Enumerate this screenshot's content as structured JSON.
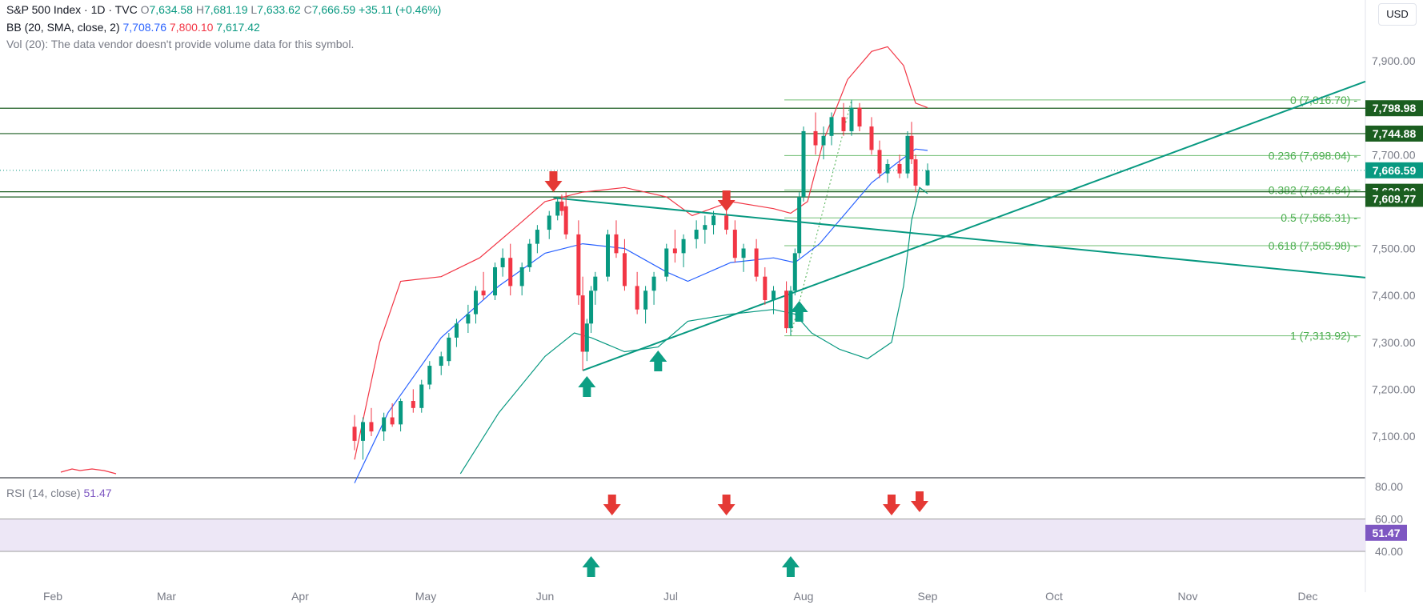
{
  "header": {
    "symbol": "S&P 500 Index · 1D · TVC",
    "o_label": "O",
    "o": "7,634.58",
    "h_label": "H",
    "h": "7,681.19",
    "l_label": "L",
    "l": "7,633.62",
    "c_label": "C",
    "c": "7,666.59",
    "change": "+35.11 (+0.46%)",
    "bb_label": "BB (20, SMA, close, 2)",
    "bb_basis": "7,708.76",
    "bb_upper": "7,800.10",
    "bb_lower": "7,617.42",
    "vol_label": "Vol (20):",
    "vol_note": "The data vendor doesn't provide volume data for this symbol.",
    "rsi_label": "RSI (14, close)",
    "rsi_value": "51.47",
    "currency": "USD"
  },
  "chart_data": {
    "type": "candlestick",
    "title": "S&P 500 Index · 1D · TVC",
    "y_axis": {
      "ticks": [
        7100,
        7200,
        7300,
        7400,
        7500,
        7600,
        7700,
        7900
      ],
      "tick_labels": [
        "7,100.00",
        "7,200.00",
        "7,300.00",
        "7,400.00",
        "7,500.00",
        "7,600.00",
        "7,700.00",
        "7,900.00"
      ],
      "range": [
        7020,
        7985
      ]
    },
    "x_axis": {
      "tick_labels": [
        "Feb",
        "Mar",
        "Apr",
        "May",
        "Jun",
        "Jul",
        "Aug",
        "Sep",
        "Oct",
        "Nov",
        "Dec"
      ]
    },
    "last_price": "7,666.59",
    "horizontal_levels": [
      {
        "label": "7,798.98",
        "value": 7798.98
      },
      {
        "label": "7,744.88",
        "value": 7744.88
      },
      {
        "label": "7,620.90",
        "value": 7620.9
      },
      {
        "label": "7,609.77",
        "value": 7609.77
      }
    ],
    "fibonacci": [
      {
        "label": "0 (7,816.70)",
        "value": 7816.7
      },
      {
        "label": "0.236 (7,698.04)",
        "value": 7698.04
      },
      {
        "label": "0.382 (7,624.64)",
        "value": 7624.64
      },
      {
        "label": "0.5 (7,565.31)",
        "value": 7565.31
      },
      {
        "label": "0.618 (7,505.98)",
        "value": 7505.98
      },
      {
        "label": "1 (7,313.92)",
        "value": 7313.92
      }
    ],
    "candles_approx": [
      [
        "Apr 14",
        7120,
        7145,
        7070,
        7090
      ],
      [
        "Apr 16",
        7090,
        7140,
        7050,
        7130
      ],
      [
        "Apr 18",
        7130,
        7160,
        7100,
        7110
      ],
      [
        "Apr 21",
        7110,
        7150,
        7090,
        7140
      ],
      [
        "Apr 23",
        7140,
        7170,
        7120,
        7125
      ],
      [
        "Apr 25",
        7125,
        7180,
        7110,
        7175
      ],
      [
        "Apr 28",
        7175,
        7200,
        7150,
        7160
      ],
      [
        "Apr 30",
        7160,
        7220,
        7150,
        7210
      ],
      [
        "May 2",
        7210,
        7260,
        7200,
        7250
      ],
      [
        "May 5",
        7250,
        7280,
        7230,
        7270
      ],
      [
        "May 7",
        7260,
        7320,
        7250,
        7310
      ],
      [
        "May 9",
        7310,
        7350,
        7290,
        7340
      ],
      [
        "May 12",
        7340,
        7380,
        7320,
        7360
      ],
      [
        "May 14",
        7360,
        7420,
        7340,
        7410
      ],
      [
        "May 16",
        7410,
        7450,
        7390,
        7400
      ],
      [
        "May 19",
        7400,
        7470,
        7390,
        7460
      ],
      [
        "May 21",
        7460,
        7500,
        7440,
        7480
      ],
      [
        "May 23",
        7480,
        7510,
        7400,
        7420
      ],
      [
        "May 26",
        7420,
        7470,
        7400,
        7460
      ],
      [
        "May 28",
        7460,
        7520,
        7450,
        7510
      ],
      [
        "May 30",
        7510,
        7550,
        7490,
        7540
      ],
      [
        "Jun 2",
        7540,
        7580,
        7520,
        7570
      ],
      [
        "Jun 4",
        7570,
        7610,
        7560,
        7600
      ],
      [
        "Jun 5",
        7600,
        7615,
        7570,
        7580
      ],
      [
        "Jun 6",
        7590,
        7620,
        7520,
        7530
      ],
      [
        "Jun 9",
        7530,
        7560,
        7380,
        7400
      ],
      [
        "Jun 10",
        7400,
        7440,
        7240,
        7280
      ],
      [
        "Jun 11",
        7280,
        7350,
        7260,
        7340
      ],
      [
        "Jun 12",
        7340,
        7420,
        7320,
        7410
      ],
      [
        "Jun 13",
        7410,
        7450,
        7380,
        7440
      ],
      [
        "Jun 16",
        7440,
        7540,
        7430,
        7530
      ],
      [
        "Jun 18",
        7530,
        7560,
        7480,
        7490
      ],
      [
        "Jun 20",
        7490,
        7520,
        7410,
        7420
      ],
      [
        "Jun 23",
        7420,
        7450,
        7360,
        7370
      ],
      [
        "Jun 25",
        7370,
        7420,
        7340,
        7410
      ],
      [
        "Jun 27",
        7410,
        7450,
        7380,
        7440
      ],
      [
        "Jun 30",
        7440,
        7510,
        7430,
        7500
      ],
      [
        "Jul 2",
        7500,
        7540,
        7470,
        7490
      ],
      [
        "Jul 4",
        7490,
        7530,
        7460,
        7520
      ],
      [
        "Jul 7",
        7520,
        7560,
        7500,
        7540
      ],
      [
        "Jul 9",
        7540,
        7570,
        7510,
        7550
      ],
      [
        "Jul 11",
        7550,
        7580,
        7530,
        7570
      ],
      [
        "Jul 14",
        7570,
        7590,
        7530,
        7540
      ],
      [
        "Jul 16",
        7540,
        7560,
        7470,
        7480
      ],
      [
        "Jul 18",
        7480,
        7510,
        7450,
        7500
      ],
      [
        "Jul 21",
        7500,
        7520,
        7430,
        7440
      ],
      [
        "Jul 23",
        7440,
        7460,
        7380,
        7390
      ],
      [
        "Jul 25",
        7390,
        7420,
        7360,
        7410
      ],
      [
        "Jul 28",
        7410,
        7430,
        7320,
        7330
      ],
      [
        "Jul 29",
        7330,
        7420,
        7315,
        7410
      ],
      [
        "Jul 30",
        7410,
        7500,
        7400,
        7490
      ],
      [
        "Jul 31",
        7490,
        7620,
        7480,
        7610
      ],
      [
        "Aug 1",
        7610,
        7760,
        7600,
        7750
      ],
      [
        "Aug 4",
        7750,
        7790,
        7700,
        7720
      ],
      [
        "Aug 6",
        7720,
        7760,
        7690,
        7740
      ],
      [
        "Aug 8",
        7740,
        7790,
        7720,
        7780
      ],
      [
        "Aug 11",
        7780,
        7810,
        7740,
        7750
      ],
      [
        "Aug 13",
        7750,
        7817,
        7740,
        7800
      ],
      [
        "Aug 15",
        7800,
        7810,
        7750,
        7760
      ],
      [
        "Aug 18",
        7760,
        7780,
        7700,
        7710
      ],
      [
        "Aug 20",
        7710,
        7730,
        7650,
        7660
      ],
      [
        "Aug 22",
        7660,
        7690,
        7640,
        7680
      ],
      [
        "Aug 25",
        7680,
        7700,
        7650,
        7660
      ],
      [
        "Aug 27",
        7660,
        7750,
        7650,
        7740
      ],
      [
        "Aug 28",
        7740,
        7770,
        7680,
        7690
      ],
      [
        "Aug 29",
        7690,
        7700,
        7620,
        7634
      ],
      [
        "Sep 1",
        7634.58,
        7681.19,
        7633.62,
        7666.59
      ]
    ],
    "rsi": {
      "label": "RSI (14, close)",
      "value": "51.47",
      "levels": [
        "80.00",
        "60.00",
        "40.00"
      ],
      "level_values": [
        80,
        60,
        40
      ],
      "range": [
        30,
        80
      ]
    }
  },
  "colors": {
    "up": "#089981",
    "down": "#f23645",
    "bb_upper": "#f23645",
    "bb_basis": "#2962ff",
    "bb_lower": "#089981",
    "level_line": "#1b5e20",
    "level_tag": "#1b5e20",
    "fib": "#4caf50",
    "trend": "#089981",
    "rsi_line": "#7e57c2",
    "rsi_band": "#ede7f6",
    "last_price_tag": "#089981"
  },
  "icons": [
    "arrow-down-red",
    "arrow-up-teal"
  ]
}
